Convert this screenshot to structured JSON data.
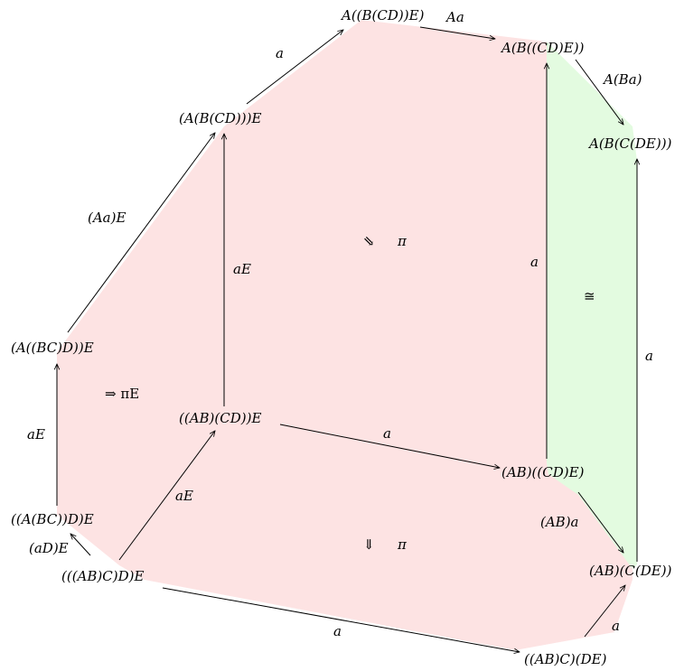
{
  "colors": {
    "red_region": "#fde3e3",
    "green_region": "#e3fbe0",
    "stroke": "#000000"
  },
  "nodes": {
    "n1": "(((AB)C)D)E",
    "n2": "((A(BC))D)E",
    "n3": "(A((BC)D))E",
    "n4": "(A(B(CD)))E",
    "n5": "A((B(CD))E)",
    "n6": "A(B((CD)E))",
    "n7": "A(B(C(DE)))",
    "n8": "((AB)(CD))E",
    "n9": "(AB)((CD)E)",
    "n10": "(AB)(C(DE))",
    "n11": "((AB)C)(DE)"
  },
  "edges": {
    "e1": "(aD)E",
    "e2": "aE",
    "e3": "(Aa)E",
    "e4": "a",
    "e5": "Aa",
    "e6": "A(Ba)",
    "e7": "aE",
    "e8": "aE",
    "e9": "a",
    "e10": "a",
    "e11": "(AB)a",
    "e12": "a",
    "e13": "a",
    "e14": "a"
  },
  "cells": {
    "c1": "⇒ πE",
    "c2": "⇘",
    "c2_pi": "π",
    "c3": "⇓",
    "c3_pi": "π",
    "c4": "≅"
  }
}
